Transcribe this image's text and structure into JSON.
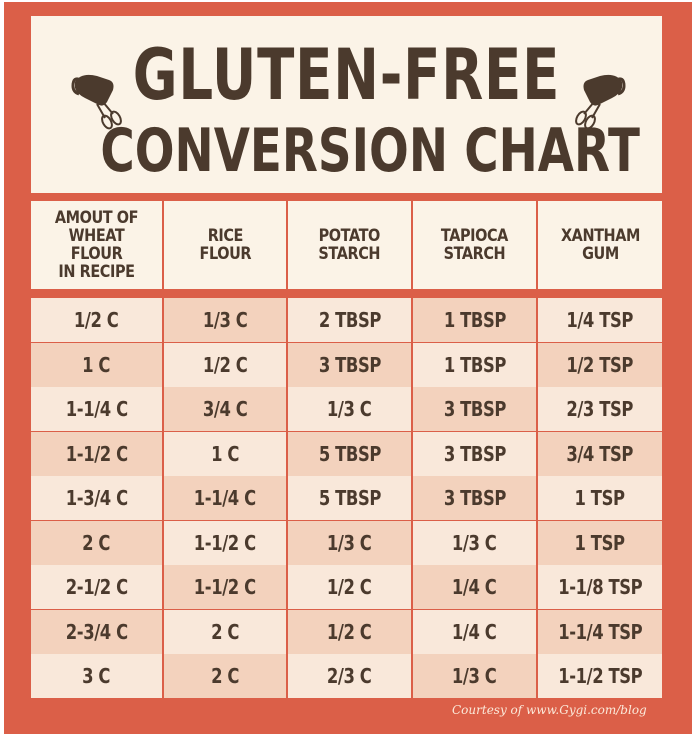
{
  "title": {
    "line1": "GLUTEN-FREE",
    "line2": "CONVERSION CHART"
  },
  "icons": {
    "left": "hand-mixer-icon",
    "right": "hand-mixer-icon"
  },
  "colors": {
    "frame": "#db5f48",
    "header_bg": "#fbf3e7",
    "text": "#4b3a2d",
    "row_light": "#f9e8da",
    "row_dark": "#f3d2bd"
  },
  "columns": [
    "AMOUT OF\nWHEAT FLOUR\nIN RECIPE",
    "RICE\nFLOUR",
    "POTATO\nSTARCH",
    "TAPIOCA\nSTARCH",
    "XANTHAM\nGUM"
  ],
  "rows": [
    [
      "1/2 C",
      "1/3 C",
      "2 TBSP",
      "1 TBSP",
      "1/4 TSP"
    ],
    [
      "1 C",
      "1/2 C",
      "3 TBSP",
      "1 TBSP",
      "1/2 TSP"
    ],
    [
      "1-1/4 C",
      "3/4 C",
      "1/3 C",
      "3 TBSP",
      "2/3 TSP"
    ],
    [
      "1-1/2 C",
      "1 C",
      "5 TBSP",
      "3 TBSP",
      "3/4 TSP"
    ],
    [
      "1-3/4 C",
      "1-1/4 C",
      "5 TBSP",
      "3 TBSP",
      "1 TSP"
    ],
    [
      "2 C",
      "1-1/2 C",
      "1/3 C",
      "1/3 C",
      "1 TSP"
    ],
    [
      "2-1/2 C",
      "1-1/2 C",
      "1/2 C",
      "1/4 C",
      "1-1/8 TSP"
    ],
    [
      "2-3/4 C",
      "2 C",
      "1/2 C",
      "1/4 C",
      "1-1/4 TSP"
    ],
    [
      "3 C",
      "2 C",
      "2/3 C",
      "1/3 C",
      "1-1/2 TSP"
    ]
  ],
  "credit": "Courtesy of www.Gygi.com/blog"
}
